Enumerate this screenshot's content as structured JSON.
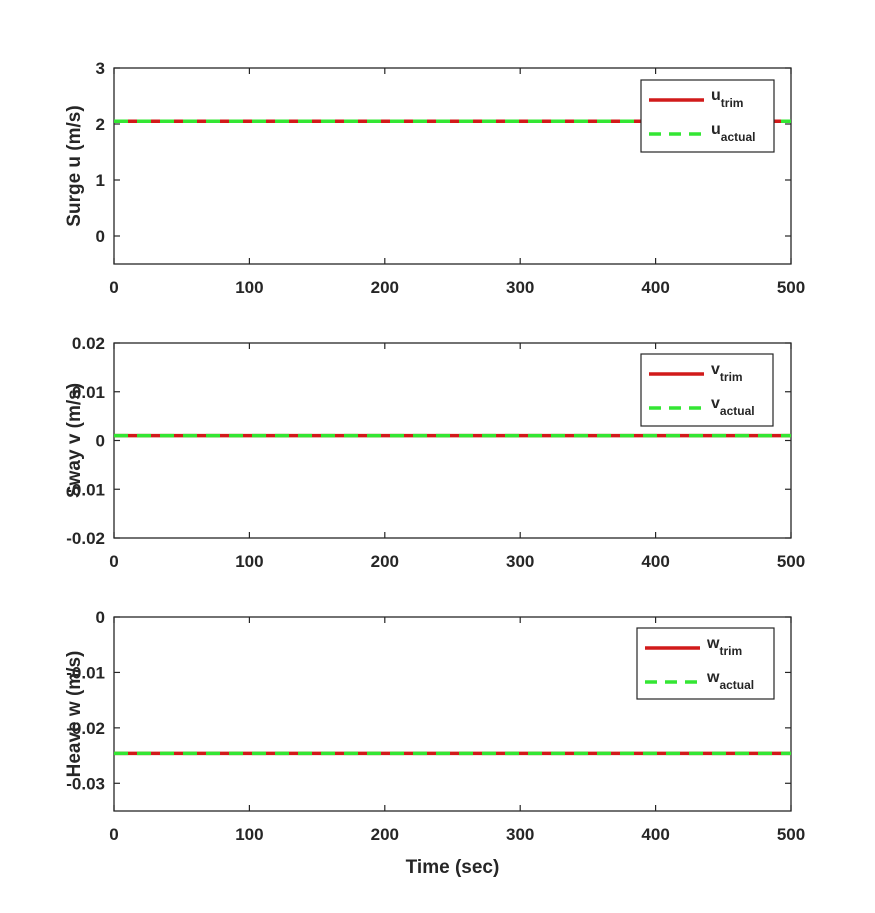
{
  "chart_data": [
    {
      "type": "line",
      "title": "",
      "xlabel": "",
      "ylabel": "Surge u (m/s)",
      "xlim": [
        0,
        500
      ],
      "ylim": [
        -0.5,
        3
      ],
      "xticks": [
        0,
        100,
        200,
        300,
        400,
        500
      ],
      "xtick_labels": [
        "0",
        "100",
        "200",
        "300",
        "400",
        "500"
      ],
      "yticks": [
        0,
        1,
        2,
        3
      ],
      "ytick_labels": [
        "0",
        "1",
        "2",
        "3"
      ],
      "grid": false,
      "legend_position": "top-right",
      "series": [
        {
          "label_base": "u",
          "label_sub": "trim",
          "style": "solid",
          "color": "#d11a1a",
          "x": [
            0,
            500
          ],
          "y": [
            2.05,
            2.05
          ]
        },
        {
          "label_base": "u",
          "label_sub": "actual",
          "style": "dashed",
          "color": "#33e633",
          "x": [
            0,
            500
          ],
          "y": [
            2.05,
            2.05
          ]
        }
      ]
    },
    {
      "type": "line",
      "title": "",
      "xlabel": "",
      "ylabel": "Sway v (m/s)",
      "xlim": [
        0,
        500
      ],
      "ylim": [
        -0.02,
        0.02
      ],
      "xticks": [
        0,
        100,
        200,
        300,
        400,
        500
      ],
      "xtick_labels": [
        "0",
        "100",
        "200",
        "300",
        "400",
        "500"
      ],
      "yticks": [
        -0.02,
        -0.01,
        0,
        0.01,
        0.02
      ],
      "ytick_labels": [
        "-0.02",
        "-0.01",
        "0",
        "0.01",
        "0.02"
      ],
      "grid": false,
      "legend_position": "top-right",
      "series": [
        {
          "label_base": "v",
          "label_sub": "trim",
          "style": "solid",
          "color": "#d11a1a",
          "x": [
            0,
            500
          ],
          "y": [
            0.001,
            0.001
          ]
        },
        {
          "label_base": "v",
          "label_sub": "actual",
          "style": "dashed",
          "color": "#33e633",
          "x": [
            0,
            500
          ],
          "y": [
            0.001,
            0.001
          ]
        }
      ]
    },
    {
      "type": "line",
      "title": "",
      "xlabel": "Time (sec)",
      "ylabel": "Heave w (m/s)",
      "xlim": [
        0,
        500
      ],
      "ylim": [
        -0.035,
        0
      ],
      "xticks": [
        0,
        100,
        200,
        300,
        400,
        500
      ],
      "xtick_labels": [
        "0",
        "100",
        "200",
        "300",
        "400",
        "500"
      ],
      "yticks": [
        -0.03,
        -0.02,
        -0.01,
        0
      ],
      "ytick_labels": [
        "-0.03",
        "-0.02",
        "-0.01",
        "0"
      ],
      "grid": false,
      "legend_position": "top-right",
      "series": [
        {
          "label_base": "w",
          "label_sub": "trim",
          "style": "solid",
          "color": "#d11a1a",
          "x": [
            0,
            500
          ],
          "y": [
            -0.0246,
            -0.0246
          ]
        },
        {
          "label_base": "w",
          "label_sub": "actual",
          "style": "dashed",
          "color": "#33e633",
          "x": [
            0,
            500
          ],
          "y": [
            -0.0246,
            -0.0246
          ]
        }
      ]
    }
  ]
}
